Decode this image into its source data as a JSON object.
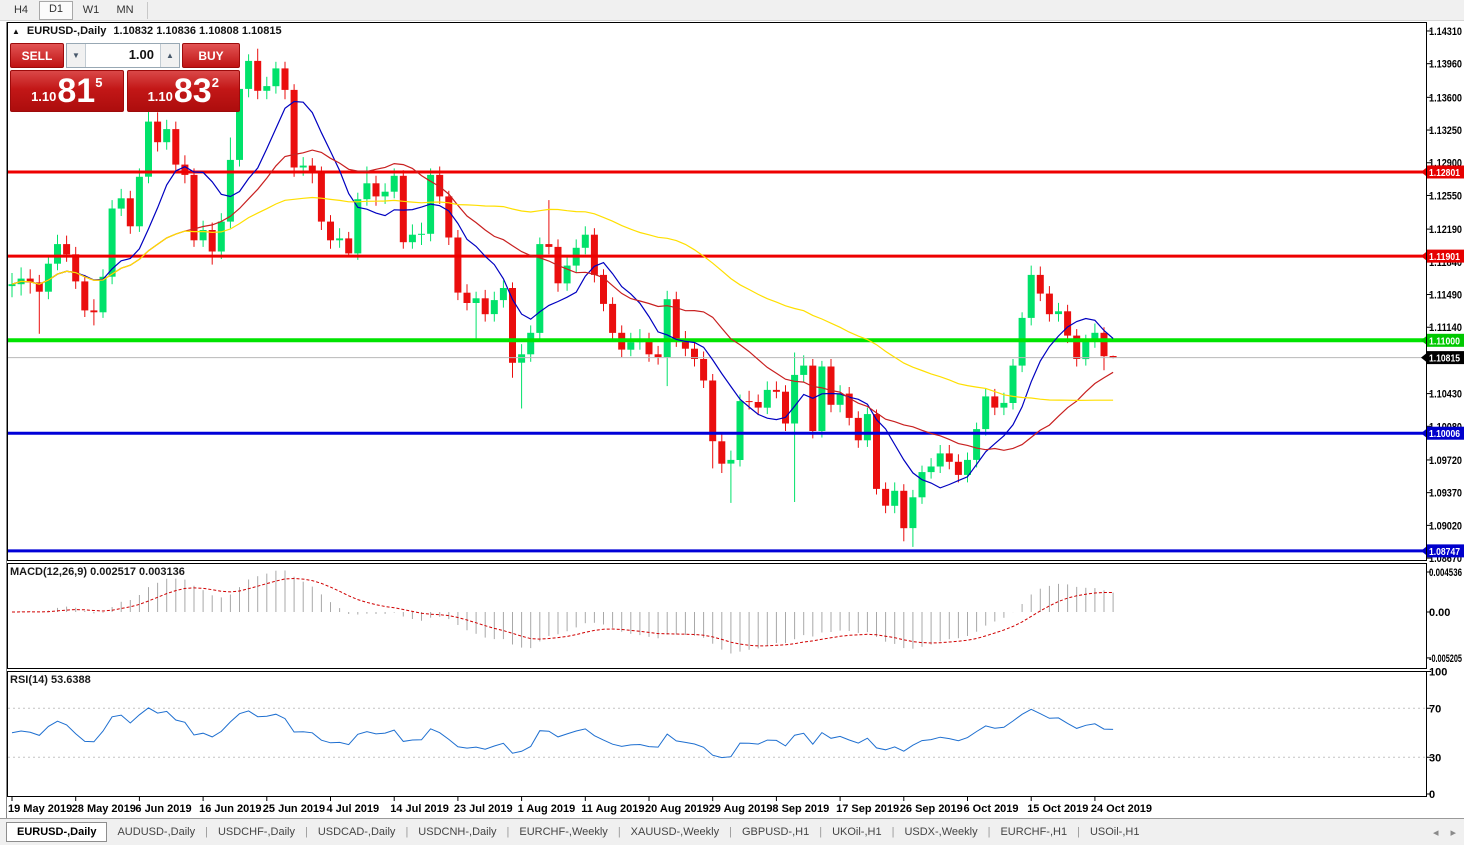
{
  "toolbar": {
    "timeframes": [
      "H4",
      "D1",
      "W1",
      "MN"
    ],
    "active": "D1"
  },
  "title": {
    "collapse_icon": "▲",
    "symbol": "EURUSD-,Daily",
    "ohlc": "1.10832 1.10836 1.10808 1.10815"
  },
  "trade_panel": {
    "sell_label": "SELL",
    "buy_label": "BUY",
    "volume": "1.00",
    "spinner_down": "▼",
    "spinner_up": "▲",
    "sell_price_prefix": "1.10",
    "sell_price_big": "81",
    "sell_price_sup": "5",
    "buy_price_prefix": "1.10",
    "buy_price_big": "83",
    "buy_price_sup": "2"
  },
  "chart_data": {
    "type": "candlestick",
    "symbol": "EURUSD",
    "timeframe": "Daily",
    "up_color": "#00e26a",
    "down_color": "#ea0e0e",
    "price_ticks": [
      "1.14310",
      "1.13960",
      "1.13600",
      "1.13250",
      "1.12900",
      "1.12550",
      "1.12190",
      "1.11840",
      "1.11490",
      "1.11140",
      "1.10430",
      "1.10080",
      "1.09720",
      "1.09370",
      "1.09020",
      "1.08670"
    ],
    "hlines": [
      {
        "label": "1.12801",
        "price": 1.12801,
        "color": "#ee0000",
        "width": 3,
        "label_bg": "#e60000"
      },
      {
        "label": "1.11901",
        "price": 1.11901,
        "color": "#ee0000",
        "width": 3,
        "label_bg": "#e60000"
      },
      {
        "label": "1.11000",
        "price": 1.11,
        "color": "#00e400",
        "width": 4,
        "label_bg": "#00c800"
      },
      {
        "label": "1.10815",
        "price": 1.10815,
        "color": "#b8b8b8",
        "width": 1,
        "label_bg": "#000000"
      },
      {
        "label": "1.10006",
        "price": 1.10006,
        "color": "#0000d8",
        "width": 3,
        "label_bg": "#0000cc"
      },
      {
        "label": "1.08747",
        "price": 1.08747,
        "color": "#0000d8",
        "width": 3,
        "label_bg": "#0000cc"
      }
    ],
    "ma": [
      {
        "name": "ma-fast-line",
        "period": 8,
        "color": "#0000c0"
      },
      {
        "name": "ma-mid-line",
        "period": 20,
        "color": "#c82020"
      },
      {
        "name": "ma-slow-line",
        "period": 50,
        "color": "#ffdf00"
      }
    ],
    "candles": [
      [
        1.1158,
        1.1172,
        1.1146,
        1.116
      ],
      [
        1.116,
        1.1178,
        1.1148,
        1.1166
      ],
      [
        1.1166,
        1.1176,
        1.115,
        1.1162
      ],
      [
        1.1162,
        1.117,
        1.1107,
        1.1152
      ],
      [
        1.1152,
        1.119,
        1.1144,
        1.1182
      ],
      [
        1.1182,
        1.1213,
        1.1175,
        1.1203
      ],
      [
        1.1203,
        1.1212,
        1.1184,
        1.1192
      ],
      [
        1.1192,
        1.12,
        1.1155,
        1.1163
      ],
      [
        1.1163,
        1.117,
        1.1125,
        1.1132
      ],
      [
        1.1132,
        1.1144,
        1.1116,
        1.113
      ],
      [
        1.113,
        1.1176,
        1.1124,
        1.1168
      ],
      [
        1.1168,
        1.125,
        1.116,
        1.1241
      ],
      [
        1.1241,
        1.1262,
        1.1233,
        1.1252
      ],
      [
        1.1252,
        1.126,
        1.1214,
        1.1222
      ],
      [
        1.1222,
        1.1284,
        1.1216,
        1.1275
      ],
      [
        1.1275,
        1.1348,
        1.1268,
        1.1334
      ],
      [
        1.1334,
        1.1344,
        1.1302,
        1.1312
      ],
      [
        1.1312,
        1.1336,
        1.1304,
        1.1326
      ],
      [
        1.1326,
        1.1334,
        1.128,
        1.1288
      ],
      [
        1.1288,
        1.1298,
        1.1268,
        1.1277
      ],
      [
        1.1277,
        1.1284,
        1.12,
        1.1207
      ],
      [
        1.1207,
        1.1228,
        1.12,
        1.1218
      ],
      [
        1.1218,
        1.1226,
        1.1181,
        1.1195
      ],
      [
        1.1195,
        1.1236,
        1.1187,
        1.1227
      ],
      [
        1.1227,
        1.1317,
        1.122,
        1.1293
      ],
      [
        1.1293,
        1.1378,
        1.1286,
        1.1369
      ],
      [
        1.1369,
        1.1406,
        1.136,
        1.1399
      ],
      [
        1.1399,
        1.1412,
        1.1358,
        1.1367
      ],
      [
        1.1367,
        1.1382,
        1.1358,
        1.1372
      ],
      [
        1.1372,
        1.1398,
        1.1364,
        1.1391
      ],
      [
        1.1391,
        1.1398,
        1.1358,
        1.1368
      ],
      [
        1.1368,
        1.1374,
        1.1275,
        1.1285
      ],
      [
        1.1285,
        1.1296,
        1.1276,
        1.1287
      ],
      [
        1.1287,
        1.1295,
        1.1268,
        1.128
      ],
      [
        1.128,
        1.1286,
        1.1218,
        1.1227
      ],
      [
        1.1227,
        1.1234,
        1.1198,
        1.1207
      ],
      [
        1.1207,
        1.122,
        1.1199,
        1.1209
      ],
      [
        1.1209,
        1.1216,
        1.119,
        1.1193
      ],
      [
        1.1193,
        1.1258,
        1.1186,
        1.1251
      ],
      [
        1.1251,
        1.1286,
        1.1244,
        1.1268
      ],
      [
        1.1268,
        1.1276,
        1.1244,
        1.1254
      ],
      [
        1.1254,
        1.1268,
        1.1246,
        1.1259
      ],
      [
        1.1259,
        1.1284,
        1.1252,
        1.1276
      ],
      [
        1.1276,
        1.1282,
        1.1198,
        1.1205
      ],
      [
        1.1205,
        1.1224,
        1.1198,
        1.1213
      ],
      [
        1.1213,
        1.1226,
        1.1202,
        1.1214
      ],
      [
        1.1214,
        1.1284,
        1.1206,
        1.1277
      ],
      [
        1.1277,
        1.1286,
        1.1246,
        1.1254
      ],
      [
        1.1254,
        1.126,
        1.1202,
        1.121
      ],
      [
        1.121,
        1.1218,
        1.1143,
        1.1151
      ],
      [
        1.1151,
        1.116,
        1.1132,
        1.114
      ],
      [
        1.114,
        1.1152,
        1.1101,
        1.1145
      ],
      [
        1.1145,
        1.1154,
        1.112,
        1.1128
      ],
      [
        1.1128,
        1.1152,
        1.112,
        1.1143
      ],
      [
        1.1143,
        1.1164,
        1.1135,
        1.1156
      ],
      [
        1.1156,
        1.1162,
        1.106,
        1.1076
      ],
      [
        1.1076,
        1.1096,
        1.1027,
        1.1085
      ],
      [
        1.1085,
        1.1116,
        1.1077,
        1.1108
      ],
      [
        1.1108,
        1.121,
        1.11,
        1.1203
      ],
      [
        1.1203,
        1.125,
        1.1192,
        1.12
      ],
      [
        1.12,
        1.1208,
        1.1152,
        1.1161
      ],
      [
        1.1161,
        1.119,
        1.1153,
        1.118
      ],
      [
        1.118,
        1.1208,
        1.1172,
        1.1199
      ],
      [
        1.1199,
        1.1222,
        1.1192,
        1.1213
      ],
      [
        1.1213,
        1.122,
        1.1162,
        1.117
      ],
      [
        1.117,
        1.1176,
        1.1131,
        1.1139
      ],
      [
        1.1139,
        1.1146,
        1.11,
        1.1108
      ],
      [
        1.1108,
        1.1116,
        1.1082,
        1.109
      ],
      [
        1.109,
        1.1108,
        1.1083,
        1.1098
      ],
      [
        1.1098,
        1.1112,
        1.109,
        1.11
      ],
      [
        1.11,
        1.1108,
        1.1077,
        1.1085
      ],
      [
        1.1085,
        1.1094,
        1.1074,
        1.1082
      ],
      [
        1.1082,
        1.1153,
        1.1051,
        1.1144
      ],
      [
        1.1144,
        1.1152,
        1.1093,
        1.1101
      ],
      [
        1.1101,
        1.111,
        1.1083,
        1.1091
      ],
      [
        1.1091,
        1.11,
        1.1072,
        1.108
      ],
      [
        1.108,
        1.1088,
        1.1049,
        1.1057
      ],
      [
        1.1057,
        1.1064,
        1.0963,
        1.0992
      ],
      [
        1.0992,
        1.1,
        1.0958,
        1.0968
      ],
      [
        1.0968,
        1.0982,
        1.0926,
        1.0972
      ],
      [
        1.0972,
        1.1042,
        1.0965,
        1.1035
      ],
      [
        1.1035,
        1.1046,
        1.1026,
        1.1034
      ],
      [
        1.1034,
        1.1042,
        1.102,
        1.1028
      ],
      [
        1.1028,
        1.1056,
        1.1021,
        1.1047
      ],
      [
        1.1047,
        1.1056,
        1.1038,
        1.1045
      ],
      [
        1.1045,
        1.1052,
        1.1003,
        1.1011
      ],
      [
        1.1011,
        1.1087,
        1.0927,
        1.1063
      ],
      [
        1.1063,
        1.1084,
        1.1055,
        1.1073
      ],
      [
        1.1073,
        1.108,
        1.0995,
        1.1003
      ],
      [
        1.1003,
        1.1078,
        1.0996,
        1.1072
      ],
      [
        1.1072,
        1.108,
        1.1023,
        1.1031
      ],
      [
        1.1031,
        1.1052,
        1.1023,
        1.1043
      ],
      [
        1.1043,
        1.105,
        1.1009,
        1.1017
      ],
      [
        1.1017,
        1.1024,
        1.0985,
        1.0993
      ],
      [
        1.0993,
        1.1028,
        1.0986,
        1.1021
      ],
      [
        1.1021,
        1.1026,
        1.0935,
        1.0941
      ],
      [
        1.0941,
        1.0948,
        1.0915,
        1.0923
      ],
      [
        1.0923,
        1.0948,
        1.0915,
        1.0939
      ],
      [
        1.0939,
        1.0946,
        1.0885,
        1.0899
      ],
      [
        1.0899,
        1.094,
        1.0879,
        1.0932
      ],
      [
        1.0932,
        1.0966,
        1.0925,
        1.0959
      ],
      [
        1.0959,
        1.0974,
        1.0952,
        1.0965
      ],
      [
        1.0965,
        1.0988,
        1.0958,
        1.0979
      ],
      [
        1.0979,
        1.0988,
        1.0962,
        1.097
      ],
      [
        1.097,
        1.0978,
        1.0948,
        1.0956
      ],
      [
        1.0956,
        1.098,
        1.0948,
        1.0972
      ],
      [
        1.0972,
        1.1012,
        1.0964,
        1.1005
      ],
      [
        1.1005,
        1.1048,
        1.0998,
        1.104
      ],
      [
        1.104,
        1.1048,
        1.102,
        1.1028
      ],
      [
        1.1028,
        1.1044,
        1.102,
        1.1033
      ],
      [
        1.1033,
        1.108,
        1.1026,
        1.1073
      ],
      [
        1.1073,
        1.113,
        1.1066,
        1.1124
      ],
      [
        1.1124,
        1.118,
        1.1116,
        1.117
      ],
      [
        1.117,
        1.1179,
        1.1142,
        1.115
      ],
      [
        1.115,
        1.1158,
        1.112,
        1.1128
      ],
      [
        1.1128,
        1.114,
        1.112,
        1.1131
      ],
      [
        1.1131,
        1.1138,
        1.1097,
        1.1105
      ],
      [
        1.1105,
        1.1112,
        1.1072,
        1.108
      ],
      [
        1.108,
        1.1106,
        1.1073,
        1.1099
      ],
      [
        1.1099,
        1.1118,
        1.1092,
        1.1108
      ],
      [
        1.1108,
        1.1114,
        1.1068,
        1.1083
      ],
      [
        1.10832,
        1.10836,
        1.10808,
        1.10815
      ]
    ],
    "date_ticks": [
      {
        "label": "19 May 2019",
        "bar": 0
      },
      {
        "label": "28 May 2019",
        "bar": 7
      },
      {
        "label": "6 Jun 2019",
        "bar": 14
      },
      {
        "label": "16 Jun 2019",
        "bar": 21
      },
      {
        "label": "25 Jun 2019",
        "bar": 28
      },
      {
        "label": "4 Jul 2019",
        "bar": 35
      },
      {
        "label": "14 Jul 2019",
        "bar": 42
      },
      {
        "label": "23 Jul 2019",
        "bar": 49
      },
      {
        "label": "1 Aug 2019",
        "bar": 56
      },
      {
        "label": "11 Aug 2019",
        "bar": 63
      },
      {
        "label": "20 Aug 2019",
        "bar": 70
      },
      {
        "label": "29 Aug 2019",
        "bar": 77
      },
      {
        "label": "8 Sep 2019",
        "bar": 84
      },
      {
        "label": "17 Sep 2019",
        "bar": 91
      },
      {
        "label": "26 Sep 2019",
        "bar": 98
      },
      {
        "label": "6 Oct 2019",
        "bar": 105
      },
      {
        "label": "15 Oct 2019",
        "bar": 112
      },
      {
        "label": "24 Oct 2019",
        "bar": 119
      }
    ],
    "macd": {
      "legend": "MACD(12,26,9) 0.002517 0.003136",
      "params": [
        12,
        26,
        9
      ],
      "value_main": "0.002517",
      "value_signal": "0.003136",
      "axis_ticks": [
        "0.004536",
        "0.00",
        "-0.005205"
      ],
      "hist_color": "#a8a8a8",
      "signal_color": "#d00000"
    },
    "rsi": {
      "legend": "RSI(14) 53.6388",
      "period": 14,
      "value": "53.6388",
      "axis_ticks": [
        "100",
        "70",
        "30",
        "0"
      ],
      "levels": [
        70,
        30
      ],
      "line_color": "#1e6fd0"
    }
  },
  "tabs": {
    "items": [
      {
        "label": "EURUSD-,Daily",
        "active": true
      },
      {
        "label": "AUDUSD-,Daily",
        "active": false
      },
      {
        "label": "USDCHF-,Daily",
        "active": false
      },
      {
        "label": "USDCAD-,Daily",
        "active": false
      },
      {
        "label": "USDCNH-,Daily",
        "active": false
      },
      {
        "label": "EURCHF-,Weekly",
        "active": false
      },
      {
        "label": "XAUUSD-,Weekly",
        "active": false
      },
      {
        "label": "GBPUSD-,H1",
        "active": false
      },
      {
        "label": "UKOil-,H1",
        "active": false
      },
      {
        "label": "USDX-,Weekly",
        "active": false
      },
      {
        "label": "EURCHF-,H1",
        "active": false
      },
      {
        "label": "USOil-,H1",
        "active": false
      }
    ],
    "left_arrow": "◂",
    "right_arrow": "▸"
  }
}
